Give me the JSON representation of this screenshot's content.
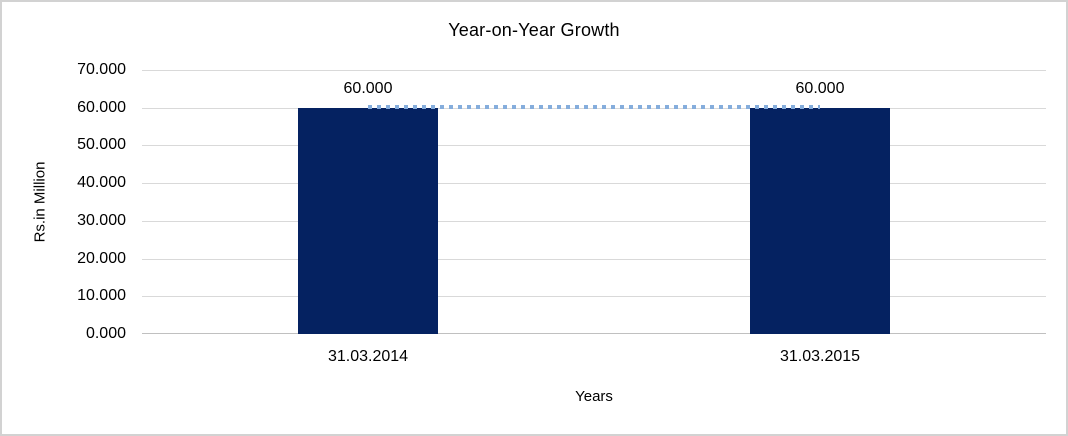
{
  "chart_data": {
    "type": "bar",
    "title": "Year-on-Year Growth",
    "xlabel": "Years",
    "ylabel": "Rs.in Million",
    "categories": [
      "31.03.2014",
      "31.03.2015"
    ],
    "series": [
      {
        "name": "",
        "values": [
          60.0,
          60.0
        ]
      }
    ],
    "data_labels": [
      "60.000",
      "60.000"
    ],
    "ylim": [
      0,
      70
    ],
    "ytick_step": 10,
    "ytick_labels": [
      "0.000",
      "10.000",
      "20.000",
      "30.000",
      "40.000",
      "50.000",
      "60.000",
      "70.000"
    ],
    "grid": "horizontal",
    "legend": "none",
    "trendline": {
      "style": "dotted",
      "from_value": 60.0,
      "to_value": 60.0
    }
  },
  "colors": {
    "bar": "#052261",
    "trendline": "#85addc",
    "gridline": "#d9d9d9",
    "axis_line": "#c0c0c0",
    "text": "#000000",
    "frame_border": "#d2d2d2"
  }
}
